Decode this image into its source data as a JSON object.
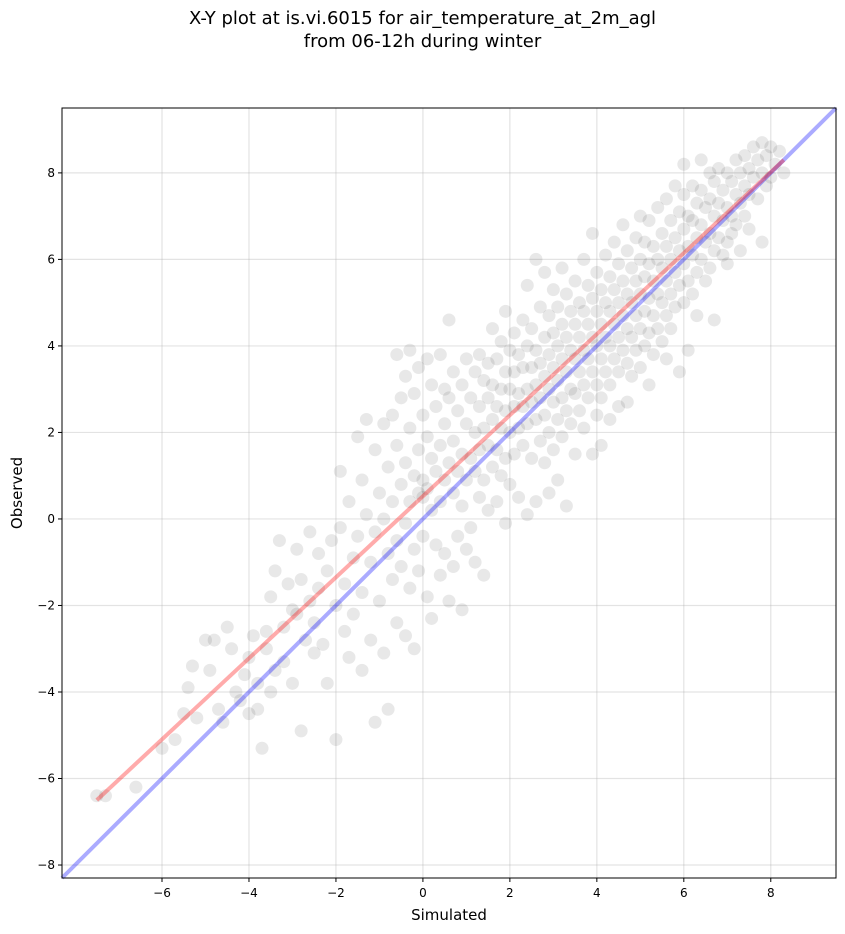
{
  "chart_data": {
    "type": "scatter",
    "title_lines": [
      "X-Y plot at is.vi.6015 for air_temperature_at_2m_agl",
      "from 06-12h during winter"
    ],
    "xlabel": "Simulated",
    "ylabel": "Observed",
    "xlim": [
      -8.3,
      9.5
    ],
    "ylim": [
      -8.3,
      9.5
    ],
    "xticks": [
      -6,
      -4,
      -2,
      0,
      2,
      4,
      6,
      8
    ],
    "yticks": [
      -8,
      -6,
      -4,
      -2,
      0,
      2,
      4,
      6,
      8
    ],
    "tick_labels": [
      "−8",
      "−6",
      "−4",
      "−2",
      "0",
      "2",
      "4",
      "6",
      "8"
    ],
    "x_tick_labels": [
      "−6",
      "−4",
      "−2",
      "0",
      "2",
      "4",
      "6",
      "8"
    ],
    "grid": true,
    "point_color": "#000000",
    "point_alpha": 0.09,
    "reference_line": {
      "label": "",
      "color": "#0000ff",
      "alpha": 0.33,
      "from": [
        -8.3,
        -8.3
      ],
      "to": [
        9.5,
        9.5
      ]
    },
    "fit_line": {
      "label": "",
      "color": "#ff0000",
      "alpha": 0.33,
      "from": [
        -7.5,
        -6.5
      ],
      "to": [
        8.3,
        8.3
      ]
    },
    "points": [
      [
        -7.5,
        -6.4
      ],
      [
        -7.3,
        -6.4
      ],
      [
        -6.6,
        -6.2
      ],
      [
        -6.0,
        -5.3
      ],
      [
        -5.7,
        -5.1
      ],
      [
        -5.5,
        -4.5
      ],
      [
        -5.4,
        -3.9
      ],
      [
        -5.3,
        -3.4
      ],
      [
        -5.2,
        -4.6
      ],
      [
        -5.0,
        -2.8
      ],
      [
        -4.8,
        -2.8
      ],
      [
        -4.9,
        -3.5
      ],
      [
        -4.7,
        -4.4
      ],
      [
        -4.6,
        -4.7
      ],
      [
        -4.5,
        -2.5
      ],
      [
        -4.4,
        -3.0
      ],
      [
        -4.3,
        -4.0
      ],
      [
        -4.2,
        -4.2
      ],
      [
        -4.1,
        -3.6
      ],
      [
        -4.0,
        -4.5
      ],
      [
        -4.0,
        -3.2
      ],
      [
        -3.9,
        -2.7
      ],
      [
        -3.8,
        -3.8
      ],
      [
        -3.8,
        -4.4
      ],
      [
        -3.7,
        -5.3
      ],
      [
        -3.6,
        -3.0
      ],
      [
        -3.6,
        -2.6
      ],
      [
        -3.5,
        -4.0
      ],
      [
        -3.5,
        -1.8
      ],
      [
        -3.4,
        -1.2
      ],
      [
        -3.4,
        -3.5
      ],
      [
        -3.3,
        -0.5
      ],
      [
        -3.2,
        -2.5
      ],
      [
        -3.2,
        -3.3
      ],
      [
        -3.1,
        -1.5
      ],
      [
        -3.0,
        -2.1
      ],
      [
        -3.0,
        -3.8
      ],
      [
        -2.9,
        -0.7
      ],
      [
        -2.9,
        -2.2
      ],
      [
        -2.8,
        -1.4
      ],
      [
        -2.8,
        -4.9
      ],
      [
        -2.7,
        -2.8
      ],
      [
        -2.6,
        -0.3
      ],
      [
        -2.6,
        -1.9
      ],
      [
        -2.5,
        -2.4
      ],
      [
        -2.5,
        -3.1
      ],
      [
        -2.4,
        -0.8
      ],
      [
        -2.4,
        -1.6
      ],
      [
        -2.3,
        -2.9
      ],
      [
        -2.2,
        -3.8
      ],
      [
        -2.2,
        -1.2
      ],
      [
        -2.1,
        -0.5
      ],
      [
        -2.0,
        -2.0
      ],
      [
        -2.0,
        -5.1
      ],
      [
        -1.9,
        1.1
      ],
      [
        -1.9,
        -0.2
      ],
      [
        -1.8,
        -1.5
      ],
      [
        -1.8,
        -2.6
      ],
      [
        -1.7,
        0.4
      ],
      [
        -1.7,
        -3.2
      ],
      [
        -1.6,
        -0.9
      ],
      [
        -1.6,
        -2.2
      ],
      [
        -1.5,
        1.9
      ],
      [
        -1.5,
        -0.4
      ],
      [
        -1.4,
        0.9
      ],
      [
        -1.4,
        -1.7
      ],
      [
        -1.4,
        -3.5
      ],
      [
        -1.3,
        2.3
      ],
      [
        -1.3,
        0.1
      ],
      [
        -1.2,
        -1.0
      ],
      [
        -1.2,
        -2.8
      ],
      [
        -1.1,
        1.6
      ],
      [
        -1.1,
        -0.3
      ],
      [
        -1.1,
        -4.7
      ],
      [
        -1.0,
        0.6
      ],
      [
        -1.0,
        -1.9
      ],
      [
        -0.9,
        2.2
      ],
      [
        -0.9,
        0.0
      ],
      [
        -0.9,
        -3.1
      ],
      [
        -0.8,
        1.2
      ],
      [
        -0.8,
        -0.8
      ],
      [
        -0.8,
        -4.4
      ],
      [
        -0.7,
        2.4
      ],
      [
        -0.7,
        0.4
      ],
      [
        -0.7,
        -1.4
      ],
      [
        -0.6,
        3.8
      ],
      [
        -0.6,
        1.7
      ],
      [
        -0.6,
        -0.5
      ],
      [
        -0.6,
        -2.4
      ],
      [
        -0.5,
        2.8
      ],
      [
        -0.5,
        0.8
      ],
      [
        -0.5,
        -1.1
      ],
      [
        -0.4,
        3.3
      ],
      [
        -0.4,
        1.3
      ],
      [
        -0.4,
        -0.1
      ],
      [
        -0.4,
        -2.7
      ],
      [
        -0.3,
        3.9
      ],
      [
        -0.3,
        2.1
      ],
      [
        -0.3,
        0.4
      ],
      [
        -0.3,
        -1.6
      ],
      [
        -0.2,
        2.9
      ],
      [
        -0.2,
        1.0
      ],
      [
        -0.2,
        -0.7
      ],
      [
        -0.2,
        -3.0
      ],
      [
        -0.1,
        3.5
      ],
      [
        -0.1,
        1.6
      ],
      [
        -0.1,
        0.6
      ],
      [
        -0.1,
        -1.2
      ],
      [
        0.0,
        2.4
      ],
      [
        0.0,
        0.9
      ],
      [
        0.0,
        0.5
      ],
      [
        0.0,
        -0.4
      ],
      [
        0.1,
        3.7
      ],
      [
        0.1,
        1.9
      ],
      [
        0.1,
        0.7
      ],
      [
        0.1,
        -1.8
      ],
      [
        0.2,
        3.1
      ],
      [
        0.2,
        1.4
      ],
      [
        0.2,
        0.2
      ],
      [
        0.2,
        -2.3
      ],
      [
        0.3,
        2.6
      ],
      [
        0.3,
        1.1
      ],
      [
        0.3,
        -0.6
      ],
      [
        0.4,
        3.8
      ],
      [
        0.4,
        1.7
      ],
      [
        0.4,
        0.4
      ],
      [
        0.4,
        -1.3
      ],
      [
        0.5,
        3.0
      ],
      [
        0.5,
        2.2
      ],
      [
        0.5,
        0.9
      ],
      [
        0.5,
        -0.8
      ],
      [
        0.6,
        4.6
      ],
      [
        0.6,
        2.8
      ],
      [
        0.6,
        1.3
      ],
      [
        0.6,
        -1.9
      ],
      [
        0.7,
        3.4
      ],
      [
        0.7,
        1.8
      ],
      [
        0.7,
        0.6
      ],
      [
        0.7,
        -1.1
      ],
      [
        0.8,
        2.5
      ],
      [
        0.8,
        1.1
      ],
      [
        0.8,
        -0.4
      ],
      [
        0.9,
        3.1
      ],
      [
        0.9,
        1.5
      ],
      [
        0.9,
        0.3
      ],
      [
        0.9,
        -2.1
      ],
      [
        1.0,
        3.7
      ],
      [
        1.0,
        2.2
      ],
      [
        1.0,
        0.9
      ],
      [
        1.0,
        -0.7
      ],
      [
        1.1,
        2.8
      ],
      [
        1.1,
        1.4
      ],
      [
        1.1,
        -0.2
      ],
      [
        1.2,
        3.4
      ],
      [
        1.2,
        2.0
      ],
      [
        1.2,
        1.1
      ],
      [
        1.2,
        -1.0
      ],
      [
        1.3,
        3.8
      ],
      [
        1.3,
        2.6
      ],
      [
        1.3,
        1.6
      ],
      [
        1.3,
        0.5
      ],
      [
        1.4,
        3.2
      ],
      [
        1.4,
        2.1
      ],
      [
        1.4,
        0.9
      ],
      [
        1.4,
        -1.3
      ],
      [
        1.5,
        3.6
      ],
      [
        1.5,
        2.8
      ],
      [
        1.5,
        1.7
      ],
      [
        1.5,
        0.2
      ],
      [
        1.6,
        4.4
      ],
      [
        1.6,
        3.1
      ],
      [
        1.6,
        2.3
      ],
      [
        1.6,
        1.2
      ],
      [
        1.7,
        3.7
      ],
      [
        1.7,
        2.6
      ],
      [
        1.7,
        1.6
      ],
      [
        1.7,
        0.4
      ],
      [
        1.8,
        4.1
      ],
      [
        1.8,
        3.0
      ],
      [
        1.8,
        2.1
      ],
      [
        1.8,
        1.0
      ],
      [
        1.9,
        4.8
      ],
      [
        1.9,
        3.4
      ],
      [
        1.9,
        2.5
      ],
      [
        1.9,
        1.4
      ],
      [
        1.9,
        -0.1
      ],
      [
        2.0,
        3.9
      ],
      [
        2.0,
        3.0
      ],
      [
        2.0,
        2.0
      ],
      [
        2.0,
        0.8
      ],
      [
        2.1,
        4.3
      ],
      [
        2.1,
        3.4
      ],
      [
        2.1,
        2.6
      ],
      [
        2.1,
        1.5
      ],
      [
        2.2,
        3.8
      ],
      [
        2.2,
        2.9
      ],
      [
        2.2,
        2.1
      ],
      [
        2.2,
        0.5
      ],
      [
        2.3,
        4.6
      ],
      [
        2.3,
        3.5
      ],
      [
        2.3,
        2.6
      ],
      [
        2.3,
        1.7
      ],
      [
        2.4,
        5.4
      ],
      [
        2.4,
        4.0
      ],
      [
        2.4,
        3.0
      ],
      [
        2.4,
        2.2
      ],
      [
        2.4,
        0.1
      ],
      [
        2.5,
        4.4
      ],
      [
        2.5,
        3.5
      ],
      [
        2.5,
        2.7
      ],
      [
        2.5,
        1.4
      ],
      [
        2.6,
        6.0
      ],
      [
        2.6,
        3.9
      ],
      [
        2.6,
        3.1
      ],
      [
        2.6,
        2.3
      ],
      [
        2.6,
        0.4
      ],
      [
        2.7,
        4.9
      ],
      [
        2.7,
        3.6
      ],
      [
        2.7,
        2.8
      ],
      [
        2.7,
        1.8
      ],
      [
        2.8,
        5.7
      ],
      [
        2.8,
        4.2
      ],
      [
        2.8,
        3.3
      ],
      [
        2.8,
        2.4
      ],
      [
        2.8,
        1.3
      ],
      [
        2.9,
        4.7
      ],
      [
        2.9,
        3.8
      ],
      [
        2.9,
        3.0
      ],
      [
        2.9,
        2.0
      ],
      [
        2.9,
        0.6
      ],
      [
        3.0,
        5.3
      ],
      [
        3.0,
        4.3
      ],
      [
        3.0,
        3.5
      ],
      [
        3.0,
        2.7
      ],
      [
        3.0,
        1.6
      ],
      [
        3.1,
        4.9
      ],
      [
        3.1,
        4.0
      ],
      [
        3.1,
        3.2
      ],
      [
        3.1,
        2.3
      ],
      [
        3.1,
        0.9
      ],
      [
        3.2,
        5.8
      ],
      [
        3.2,
        4.5
      ],
      [
        3.2,
        3.7
      ],
      [
        3.2,
        2.8
      ],
      [
        3.2,
        1.9
      ],
      [
        3.3,
        5.2
      ],
      [
        3.3,
        4.2
      ],
      [
        3.3,
        3.4
      ],
      [
        3.3,
        2.5
      ],
      [
        3.3,
        0.3
      ],
      [
        3.4,
        4.8
      ],
      [
        3.4,
        3.9
      ],
      [
        3.4,
        3.0
      ],
      [
        3.4,
        2.2
      ],
      [
        3.5,
        5.5
      ],
      [
        3.5,
        4.5
      ],
      [
        3.5,
        3.7
      ],
      [
        3.5,
        2.9
      ],
      [
        3.5,
        1.5
      ],
      [
        3.6,
        5.0
      ],
      [
        3.6,
        4.2
      ],
      [
        3.6,
        3.4
      ],
      [
        3.6,
        2.5
      ],
      [
        3.7,
        6.0
      ],
      [
        3.7,
        4.8
      ],
      [
        3.7,
        3.9
      ],
      [
        3.7,
        3.1
      ],
      [
        3.7,
        2.1
      ],
      [
        3.8,
        5.4
      ],
      [
        3.8,
        4.5
      ],
      [
        3.8,
        3.7
      ],
      [
        3.8,
        2.8
      ],
      [
        3.9,
        6.6
      ],
      [
        3.9,
        5.1
      ],
      [
        3.9,
        4.2
      ],
      [
        3.9,
        3.4
      ],
      [
        3.9,
        1.5
      ],
      [
        4.0,
        5.7
      ],
      [
        4.0,
        4.8
      ],
      [
        4.0,
        4.0
      ],
      [
        4.0,
        3.1
      ],
      [
        4.0,
        2.4
      ],
      [
        4.1,
        5.3
      ],
      [
        4.1,
        4.5
      ],
      [
        4.1,
        3.7
      ],
      [
        4.1,
        2.8
      ],
      [
        4.1,
        1.7
      ],
      [
        4.2,
        6.1
      ],
      [
        4.2,
        5.0
      ],
      [
        4.2,
        4.2
      ],
      [
        4.2,
        3.4
      ],
      [
        4.3,
        5.6
      ],
      [
        4.3,
        4.8
      ],
      [
        4.3,
        4.0
      ],
      [
        4.3,
        3.1
      ],
      [
        4.3,
        2.3
      ],
      [
        4.4,
        6.4
      ],
      [
        4.4,
        5.3
      ],
      [
        4.4,
        4.5
      ],
      [
        4.4,
        3.7
      ],
      [
        4.5,
        5.9
      ],
      [
        4.5,
        5.0
      ],
      [
        4.5,
        4.2
      ],
      [
        4.5,
        3.4
      ],
      [
        4.5,
        2.6
      ],
      [
        4.6,
        6.8
      ],
      [
        4.6,
        5.5
      ],
      [
        4.6,
        4.7
      ],
      [
        4.6,
        3.9
      ],
      [
        4.7,
        6.2
      ],
      [
        4.7,
        5.2
      ],
      [
        4.7,
        4.4
      ],
      [
        4.7,
        3.6
      ],
      [
        4.7,
        2.7
      ],
      [
        4.8,
        5.8
      ],
      [
        4.8,
        5.0
      ],
      [
        4.8,
        4.2
      ],
      [
        4.8,
        3.3
      ],
      [
        4.9,
        6.5
      ],
      [
        4.9,
        5.5
      ],
      [
        4.9,
        4.7
      ],
      [
        4.9,
        3.9
      ],
      [
        5.0,
        7.0
      ],
      [
        5.0,
        6.0
      ],
      [
        5.0,
        5.2
      ],
      [
        5.0,
        4.4
      ],
      [
        5.0,
        3.5
      ],
      [
        5.1,
        6.4
      ],
      [
        5.1,
        5.6
      ],
      [
        5.1,
        4.8
      ],
      [
        5.1,
        4.0
      ],
      [
        5.2,
        6.9
      ],
      [
        5.2,
        5.9
      ],
      [
        5.2,
        5.1
      ],
      [
        5.2,
        4.3
      ],
      [
        5.2,
        3.1
      ],
      [
        5.3,
        6.3
      ],
      [
        5.3,
        5.5
      ],
      [
        5.3,
        4.7
      ],
      [
        5.3,
        3.8
      ],
      [
        5.4,
        7.2
      ],
      [
        5.4,
        6.0
      ],
      [
        5.4,
        5.2
      ],
      [
        5.4,
        4.4
      ],
      [
        5.5,
        6.6
      ],
      [
        5.5,
        5.8
      ],
      [
        5.5,
        5.0
      ],
      [
        5.5,
        4.1
      ],
      [
        5.6,
        7.4
      ],
      [
        5.6,
        6.3
      ],
      [
        5.6,
        5.5
      ],
      [
        5.6,
        4.7
      ],
      [
        5.6,
        3.7
      ],
      [
        5.7,
        6.9
      ],
      [
        5.7,
        6.0
      ],
      [
        5.7,
        5.2
      ],
      [
        5.7,
        4.4
      ],
      [
        5.8,
        7.7
      ],
      [
        5.8,
        6.5
      ],
      [
        5.8,
        5.7
      ],
      [
        5.8,
        4.9
      ],
      [
        5.9,
        7.1
      ],
      [
        5.9,
        6.2
      ],
      [
        5.9,
        5.4
      ],
      [
        5.9,
        3.4
      ],
      [
        6.0,
        8.2
      ],
      [
        6.0,
        7.5
      ],
      [
        6.0,
        6.7
      ],
      [
        6.0,
        5.9
      ],
      [
        6.0,
        5.0
      ],
      [
        6.1,
        7.0
      ],
      [
        6.1,
        6.3
      ],
      [
        6.1,
        5.5
      ],
      [
        6.1,
        3.9
      ],
      [
        6.2,
        7.7
      ],
      [
        6.2,
        6.9
      ],
      [
        6.2,
        6.1
      ],
      [
        6.2,
        5.2
      ],
      [
        6.3,
        7.3
      ],
      [
        6.3,
        6.5
      ],
      [
        6.3,
        5.7
      ],
      [
        6.3,
        4.7
      ],
      [
        6.4,
        8.3
      ],
      [
        6.4,
        7.6
      ],
      [
        6.4,
        6.8
      ],
      [
        6.4,
        6.0
      ],
      [
        6.5,
        7.2
      ],
      [
        6.5,
        6.4
      ],
      [
        6.5,
        5.5
      ],
      [
        6.6,
        8.0
      ],
      [
        6.6,
        7.4
      ],
      [
        6.6,
        6.6
      ],
      [
        6.6,
        5.8
      ],
      [
        6.7,
        7.8
      ],
      [
        6.7,
        7.0
      ],
      [
        6.7,
        6.2
      ],
      [
        6.7,
        4.6
      ],
      [
        6.8,
        8.1
      ],
      [
        6.8,
        7.3
      ],
      [
        6.8,
        6.5
      ],
      [
        6.9,
        7.6
      ],
      [
        6.9,
        6.9
      ],
      [
        6.9,
        6.1
      ],
      [
        7.0,
        8.0
      ],
      [
        7.0,
        7.2
      ],
      [
        7.0,
        6.4
      ],
      [
        7.0,
        5.9
      ],
      [
        7.1,
        7.8
      ],
      [
        7.1,
        7.0
      ],
      [
        7.1,
        6.6
      ],
      [
        7.2,
        8.3
      ],
      [
        7.2,
        7.5
      ],
      [
        7.2,
        6.8
      ],
      [
        7.3,
        8.0
      ],
      [
        7.3,
        7.3
      ],
      [
        7.3,
        6.2
      ],
      [
        7.4,
        8.4
      ],
      [
        7.4,
        7.7
      ],
      [
        7.4,
        7.0
      ],
      [
        7.5,
        8.1
      ],
      [
        7.5,
        7.5
      ],
      [
        7.5,
        6.7
      ],
      [
        7.6,
        8.6
      ],
      [
        7.6,
        7.9
      ],
      [
        7.7,
        8.3
      ],
      [
        7.7,
        7.4
      ],
      [
        7.8,
        8.7
      ],
      [
        7.8,
        8.0
      ],
      [
        7.8,
        6.4
      ],
      [
        7.9,
        8.4
      ],
      [
        7.9,
        7.7
      ],
      [
        8.0,
        8.6
      ],
      [
        8.0,
        7.9
      ],
      [
        8.1,
        8.2
      ],
      [
        8.2,
        8.5
      ],
      [
        8.3,
        8.0
      ]
    ]
  }
}
